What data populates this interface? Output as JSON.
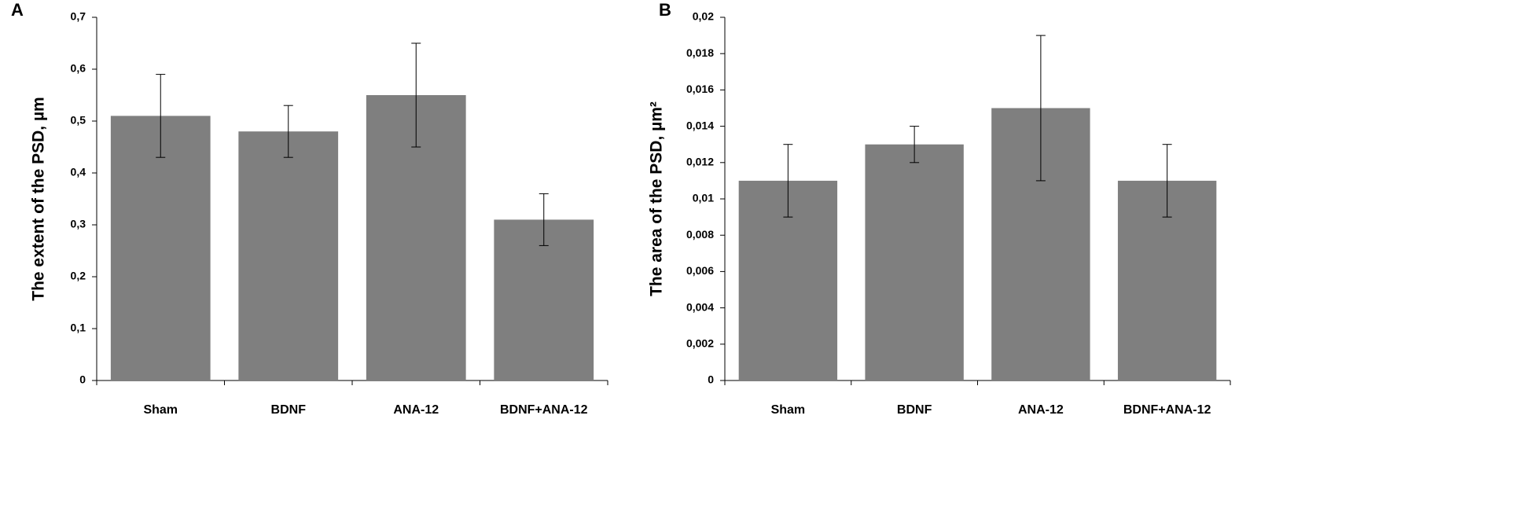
{
  "chart_data": [
    {
      "type": "bar",
      "panel": "A",
      "y_label": "The extent of the PSD, µm",
      "categories": [
        "Sham",
        "BDNF",
        "ANA-12",
        "BDNF+ANA-12"
      ],
      "values": [
        0.51,
        0.48,
        0.55,
        0.31
      ],
      "errors": [
        0.08,
        0.05,
        0.1,
        0.05
      ],
      "color": "#7f7f7f",
      "ylim": [
        0,
        0.7
      ],
      "yticks": [
        0,
        {
          "value": 0.1,
          "label": "0,1"
        },
        {
          "value": 0.2,
          "label": "0,2"
        },
        {
          "value": 0.3,
          "label": "0,3"
        },
        {
          "value": 0.4,
          "label": "0,4"
        },
        {
          "value": 0.5,
          "label": "0,5"
        },
        {
          "value": 0.6,
          "label": "0,6"
        },
        {
          "value": 0.7,
          "label": "0,7"
        }
      ],
      "grid": false
    },
    {
      "type": "bar",
      "panel": "B",
      "y_label": "The area of the PSD, µm²",
      "categories": [
        "Sham",
        "BDNF",
        "ANA-12",
        "BDNF+ANA-12"
      ],
      "values": [
        0.011,
        0.013,
        0.015,
        0.011
      ],
      "errors": [
        0.002,
        0.001,
        0.004,
        0.002
      ],
      "color": "#7f7f7f",
      "ylim": [
        0,
        0.02
      ],
      "yticks": [
        0,
        {
          "value": 0.002,
          "label": "0,002"
        },
        {
          "value": 0.004,
          "label": "0,004"
        },
        {
          "value": 0.006,
          "label": "0,006"
        },
        {
          "value": 0.008,
          "label": "0,008"
        },
        {
          "value": 0.01,
          "label": "0,01"
        },
        {
          "value": 0.012,
          "label": "0,012"
        },
        {
          "value": 0.014,
          "label": "0,014"
        },
        {
          "value": 0.016,
          "label": "0,016"
        },
        {
          "value": 0.018,
          "label": "0,018"
        },
        {
          "value": 0.02,
          "label": "0,02"
        }
      ],
      "grid": false
    }
  ]
}
